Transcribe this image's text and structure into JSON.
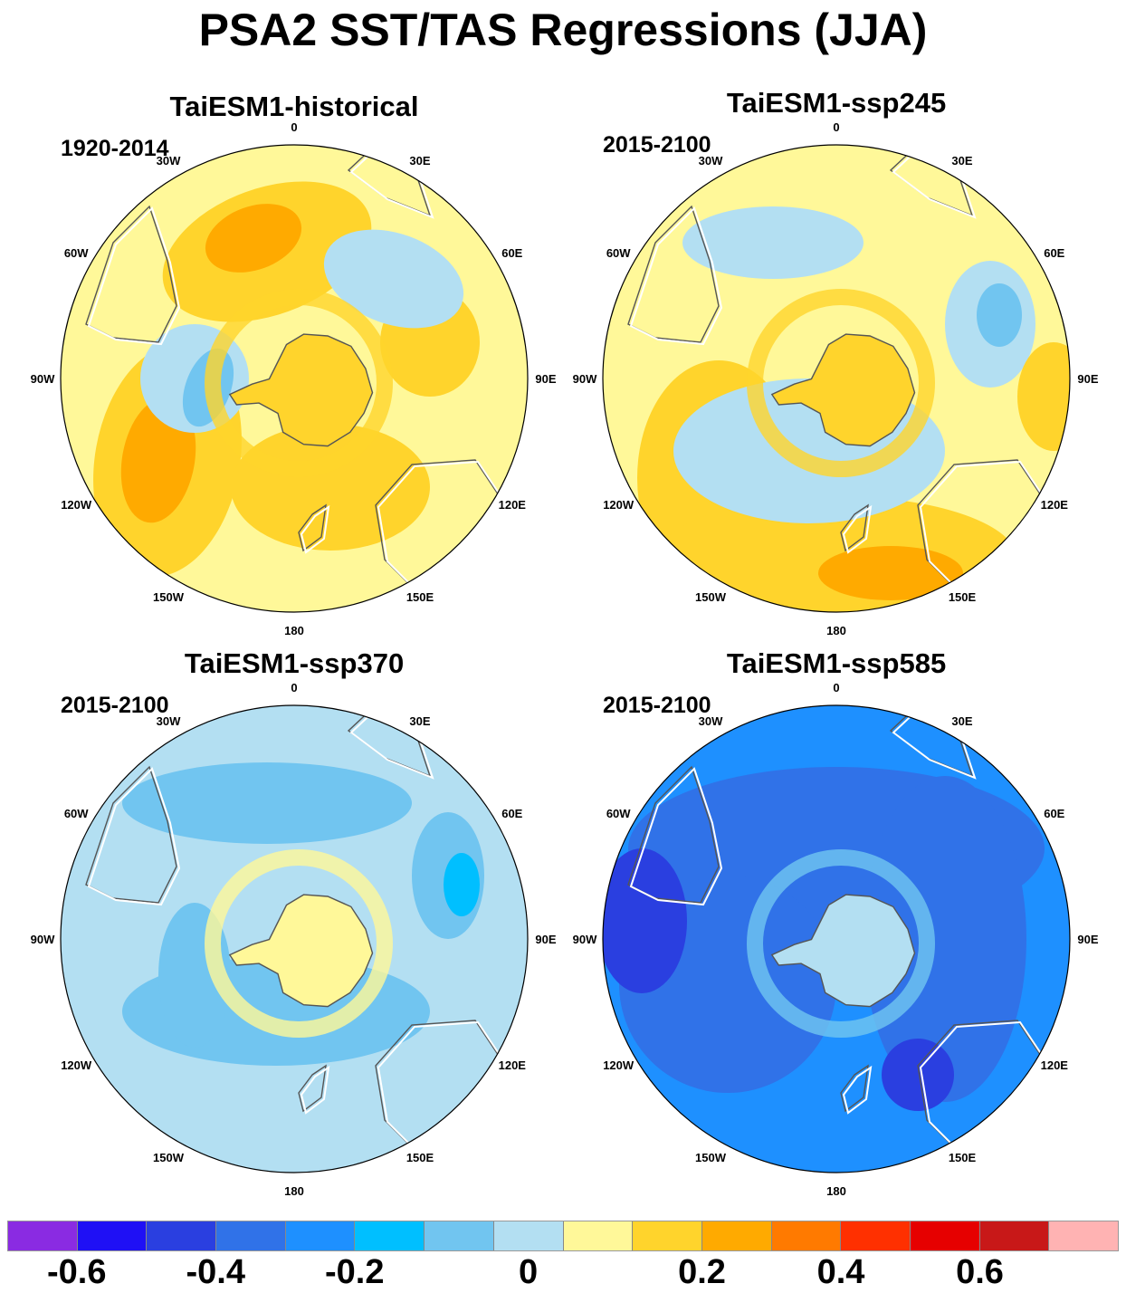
{
  "figure": {
    "title": "PSA2 SST/TAS Regressions (JJA)"
  },
  "longitude_labels": [
    "0",
    "30E",
    "60E",
    "90E",
    "120E",
    "150E",
    "180",
    "150W",
    "120W",
    "90W",
    "60W",
    "30W"
  ],
  "panels": [
    {
      "title": "TaiESM1-historical",
      "period": "1920-2014",
      "field_level": 1
    },
    {
      "title": "TaiESM1-ssp245",
      "period": "2015-2100",
      "field_level": 1
    },
    {
      "title": "TaiESM1-ssp370",
      "period": "2015-2100",
      "field_level": 0
    },
    {
      "title": "TaiESM1-ssp585",
      "period": "2015-2100",
      "field_level": -3
    }
  ],
  "colorbar": {
    "colors": [
      "#8a2be2",
      "#1f10f5",
      "#2a3fe0",
      "#3072e8",
      "#1e90ff",
      "#00bfff",
      "#71c5f0",
      "#b3dff2",
      "#fff899",
      "#ffd42c",
      "#ffaa00",
      "#ff7a00",
      "#ff3000",
      "#e60000",
      "#c81818",
      "#ffb3b3"
    ],
    "labels": [
      "-0.6",
      "-0.4",
      "-0.2",
      "0",
      "0.2",
      "0.4",
      "0.6"
    ],
    "label_box_index": [
      1,
      3,
      5,
      7.5,
      10,
      12,
      14
    ]
  },
  "map_style": {
    "land_outline": "#555555",
    "coast_highlight": "#ffffff"
  }
}
